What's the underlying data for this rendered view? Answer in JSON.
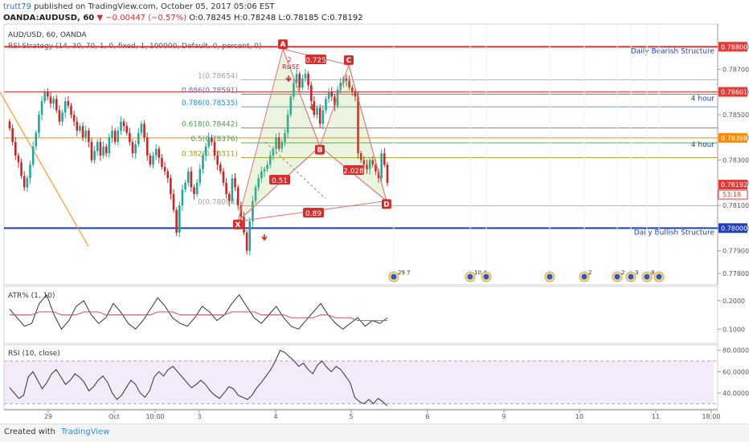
{
  "header": {
    "user": "trutt79",
    "published": "published on TradingView.com, October 05, 2017 05:06 EST",
    "symbol": "OANDA:AUDUSD, 60",
    "change": "▼ −0.00447 (−0.57%)",
    "ohlc": "O:0.78245 H:0.78248 L:0.78185 C:0.78192"
  },
  "chart_data": [
    {
      "type": "candlestick",
      "title": "AUD/USD, 60, OANDA",
      "indicator": "RSI Strategy (14, 30, 70, 1, 0, fixed, 1, 100000, Default, 0, percent, 0)",
      "ylim": [
        0.7775,
        0.789
      ],
      "y_ticks": [
        "0.77800",
        "0.77900",
        "0.78000",
        "0.78100",
        "0.78200",
        "0.78300",
        "0.78400",
        "0.78500",
        "0.78600",
        "0.78700",
        "0.78800"
      ],
      "x_ticks": [
        "29",
        "Oct",
        "10:00",
        "3",
        "4",
        "5",
        "6",
        "9",
        "10",
        "11",
        "18:00"
      ],
      "price_boxes": [
        {
          "label": "0.78800",
          "value": 0.788,
          "color": "#e53935"
        },
        {
          "label": "0.78601",
          "value": 0.78601,
          "color": "#e53935"
        },
        {
          "label": "0.78398",
          "value": 0.78398,
          "color": "#fb8c00"
        },
        {
          "label": "0.78192",
          "value": 0.78192,
          "color": "#e53935"
        },
        {
          "label": "0.78000",
          "value": 0.78,
          "color": "#1e3fb5"
        }
      ],
      "countdown": "53:18",
      "levels": [
        {
          "value": 0.788,
          "color": "#e53935",
          "label": "Daily Bearish Structure",
          "label_color": "#1e3fb5"
        },
        {
          "value": 0.78601,
          "color": "#e53935",
          "label": "4 hour",
          "label_color": "#1e3fb5"
        },
        {
          "value": 0.78398,
          "color": "#fb8c00",
          "label": "4 hour",
          "label_color": "#1e3fb5"
        },
        {
          "value": 0.78,
          "color": "#1e3fb5",
          "label": "Daily Bullish Structure",
          "label_color": "#1e3fb5"
        }
      ],
      "fib_levels": [
        {
          "label": "1(0.78654)",
          "value": 0.78654,
          "color": "#9e9e9e"
        },
        {
          "label": "0.886(0.78591)",
          "value": 0.78591,
          "color": "#5c6bc0"
        },
        {
          "label": "0.786(0.78535)",
          "value": 0.78535,
          "color": "#1e88e5"
        },
        {
          "label": "0.618(0.78442)",
          "value": 0.78442,
          "color": "#43a047"
        },
        {
          "label": "0.5(0.78376)",
          "value": 0.78376,
          "color": "#43a047"
        },
        {
          "label": "0.382(0.78311)",
          "value": 0.78311,
          "color": "#9e9d24"
        },
        {
          "label": "0(0.78098)",
          "value": 0.78098,
          "color": "#9e9e9e"
        }
      ],
      "pattern_points": [
        {
          "name": "X",
          "value": 0.7803
        },
        {
          "name": "A",
          "value": 0.7879
        },
        {
          "name": "B",
          "value": 0.7836
        },
        {
          "name": "C",
          "value": 0.7872
        },
        {
          "name": "D",
          "value": 0.7812
        }
      ],
      "ratios": [
        "0.725",
        "0.51",
        "2.028",
        "0.89"
      ],
      "strategy_label": "RsiSE",
      "strategy_count": "2",
      "event_labels": [
        "29 7",
        "10 4",
        "2",
        "2",
        "3",
        "8"
      ],
      "closes": [
        0.7844,
        0.7838,
        0.7832,
        0.7829,
        0.7823,
        0.7818,
        0.7822,
        0.7828,
        0.7836,
        0.7842,
        0.785,
        0.7856,
        0.786,
        0.7858,
        0.7855,
        0.7857,
        0.7852,
        0.7847,
        0.7851,
        0.7856,
        0.7854,
        0.785,
        0.7847,
        0.7843,
        0.7845,
        0.784,
        0.7843,
        0.7838,
        0.783,
        0.7834,
        0.7838,
        0.7832,
        0.7836,
        0.7833,
        0.784,
        0.7843,
        0.7838,
        0.7843,
        0.7847,
        0.7845,
        0.7842,
        0.7838,
        0.7833,
        0.7837,
        0.7842,
        0.7846,
        0.784,
        0.7832,
        0.7828,
        0.7832,
        0.7835,
        0.7831,
        0.7827,
        0.7825,
        0.7822,
        0.7815,
        0.7808,
        0.7798,
        0.781,
        0.7817,
        0.782,
        0.7825,
        0.7818,
        0.7815,
        0.782,
        0.7826,
        0.7832,
        0.7836,
        0.784,
        0.7838,
        0.7832,
        0.7828,
        0.7825,
        0.782,
        0.7815,
        0.7812,
        0.7822,
        0.7818,
        0.781,
        0.7805,
        0.7798,
        0.779,
        0.7803,
        0.7812,
        0.7818,
        0.7822,
        0.7825,
        0.7826,
        0.7828,
        0.7832,
        0.7835,
        0.784,
        0.7835,
        0.7838,
        0.7842,
        0.785,
        0.7858,
        0.7864,
        0.7868,
        0.7862,
        0.7866,
        0.7868,
        0.7863,
        0.7856,
        0.785,
        0.7853,
        0.7846,
        0.7852,
        0.7857,
        0.786,
        0.7858,
        0.7854,
        0.7861,
        0.7864,
        0.7866,
        0.7865,
        0.7862,
        0.786,
        0.7858,
        0.7833,
        0.783,
        0.7828,
        0.7826,
        0.783,
        0.7828,
        0.7825,
        0.7822,
        0.7833,
        0.7828,
        0.782
      ]
    },
    {
      "type": "line",
      "title": "ATR% (1, 10)",
      "ylim": [
        0.05,
        0.25
      ],
      "y_ticks": [
        "0.1000",
        "0.2000"
      ],
      "series": [
        {
          "color": "#333333",
          "values": [
            0.17,
            0.14,
            0.11,
            0.12,
            0.19,
            0.22,
            0.15,
            0.1,
            0.13,
            0.18,
            0.2,
            0.15,
            0.12,
            0.14,
            0.19,
            0.16,
            0.12,
            0.1,
            0.13,
            0.17,
            0.21,
            0.18,
            0.14,
            0.12,
            0.11,
            0.14,
            0.18,
            0.16,
            0.13,
            0.15,
            0.19,
            0.22,
            0.18,
            0.14,
            0.12,
            0.15,
            0.18,
            0.14,
            0.11,
            0.1,
            0.13,
            0.16,
            0.19,
            0.15,
            0.12,
            0.1,
            0.12,
            0.14,
            0.11,
            0.13,
            0.12,
            0.14
          ]
        },
        {
          "color": "#c2566f",
          "values": [
            0.15,
            0.15,
            0.15,
            0.15,
            0.16,
            0.16,
            0.16,
            0.15,
            0.15,
            0.15,
            0.16,
            0.16,
            0.16,
            0.15,
            0.15,
            0.15,
            0.15,
            0.15,
            0.15,
            0.15,
            0.16,
            0.16,
            0.16,
            0.15,
            0.15,
            0.15,
            0.15,
            0.15,
            0.15,
            0.15,
            0.16,
            0.16,
            0.16,
            0.16,
            0.15,
            0.15,
            0.15,
            0.15,
            0.14,
            0.14,
            0.14,
            0.14,
            0.15,
            0.15,
            0.14,
            0.14,
            0.14,
            0.13,
            0.13,
            0.13,
            0.13,
            0.13
          ]
        }
      ]
    },
    {
      "type": "line",
      "title": "RSI (10, close)",
      "ylim": [
        25,
        85
      ],
      "y_ticks": [
        "40.0000",
        "60.0000",
        "80.0000"
      ],
      "band": [
        30,
        70
      ],
      "series": [
        {
          "color": "#333333",
          "values": [
            45,
            40,
            35,
            38,
            55,
            60,
            52,
            44,
            50,
            58,
            62,
            55,
            48,
            52,
            58,
            55,
            50,
            42,
            46,
            52,
            56,
            50,
            40,
            34,
            38,
            45,
            52,
            48,
            40,
            36,
            42,
            55,
            60,
            56,
            62,
            65,
            60,
            55,
            50,
            45,
            48,
            52,
            48,
            42,
            38,
            35,
            40,
            46,
            44,
            38,
            36,
            34,
            38,
            45,
            50,
            56,
            62,
            70,
            80,
            78,
            74,
            70,
            65,
            68,
            62,
            58,
            66,
            70,
            64,
            60,
            65,
            62,
            56,
            50,
            36,
            32,
            30,
            34,
            30,
            35,
            32,
            28
          ]
        }
      ]
    }
  ],
  "footer": {
    "created_with": "Created with",
    "brand": "TradingView"
  }
}
